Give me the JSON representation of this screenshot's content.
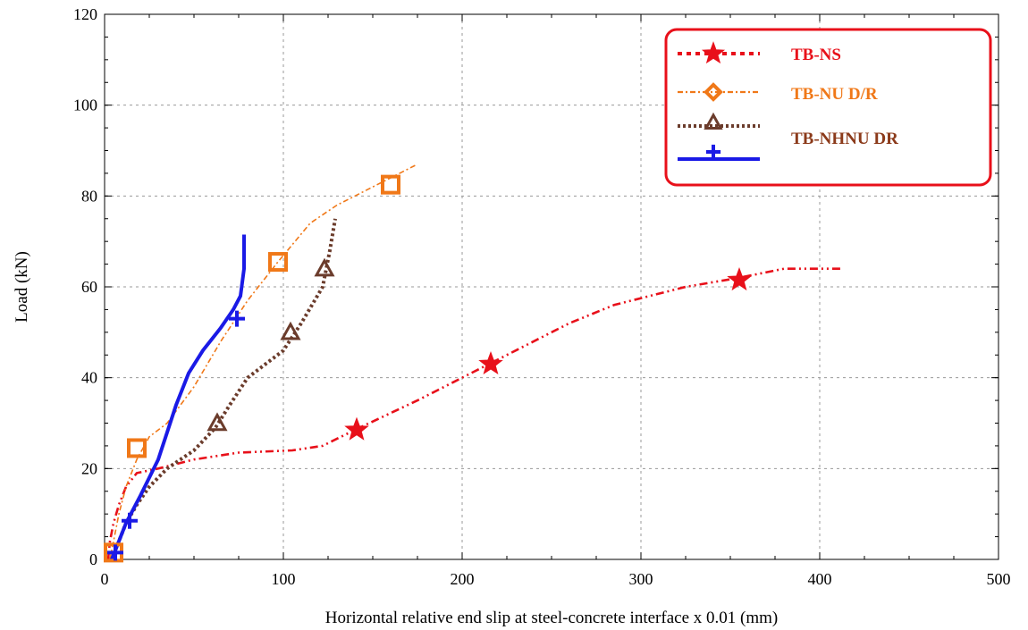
{
  "chart_data": {
    "type": "line",
    "title": "",
    "xlabel": "Horizontal relative end slip at steel-concrete interface x 0.01 (mm)",
    "ylabel": "Load (kN)",
    "xlim": [
      0,
      500
    ],
    "ylim": [
      0,
      120
    ],
    "x_ticks": [
      "0",
      "100",
      "200",
      "300",
      "400",
      "500"
    ],
    "y_ticks": [
      "0",
      "20",
      "40",
      "60",
      "80",
      "100",
      "120"
    ],
    "grid": true,
    "legend_position": "top-right",
    "series": [
      {
        "name": "TB-NS",
        "color": "#e8101a",
        "marker": "star",
        "line_style": "dash-dot-dot",
        "x": [
          2,
          3,
          5,
          8,
          12,
          18,
          30,
          50,
          75,
          105,
          122,
          140,
          175,
          215,
          260,
          285,
          325,
          355,
          380,
          412
        ],
        "y": [
          0,
          4,
          8,
          12,
          16,
          19,
          20,
          22,
          23.5,
          24,
          25,
          28.5,
          35,
          43,
          52,
          56,
          60,
          62,
          64,
          64
        ],
        "marker_x": [
          141,
          216,
          355
        ],
        "marker_y": [
          28.5,
          43,
          61.5
        ]
      },
      {
        "name": "TB-NU D/R",
        "color": "#f07818",
        "marker": "square",
        "line_style": "dash-dot",
        "x": [
          3,
          5,
          8,
          12,
          18,
          25,
          35,
          50,
          65,
          80,
          97,
          115,
          130,
          160,
          175
        ],
        "y": [
          0,
          4,
          10,
          16,
          22,
          27,
          30,
          38,
          48,
          57,
          65.5,
          74,
          78,
          84,
          87
        ],
        "marker_x": [
          5,
          18,
          97,
          160
        ],
        "marker_y": [
          1.5,
          24.5,
          65.5,
          82.5
        ]
      },
      {
        "name": "TB-NHNU DR",
        "color": "#6b3c2c",
        "marker": "triangle",
        "line_style": "dotted",
        "x": [
          4,
          8,
          12,
          18,
          25,
          35,
          50,
          62,
          70,
          80,
          100,
          110,
          122,
          126,
          129
        ],
        "y": [
          0,
          4,
          8,
          12,
          16,
          20,
          24,
          29,
          34,
          40,
          46,
          52,
          60,
          68,
          75
        ],
        "marker_x": [
          63,
          104,
          123
        ],
        "marker_y": [
          30,
          50,
          64
        ]
      },
      {
        "name": "",
        "color": "#1a1ae6",
        "marker": "plus",
        "line_style": "solid",
        "x": [
          4,
          8,
          12,
          16,
          20,
          25,
          30,
          35,
          40,
          47,
          55,
          65,
          72,
          76,
          78,
          78
        ],
        "y": [
          0,
          4,
          8,
          11,
          14,
          18,
          22,
          28,
          34,
          41,
          46,
          51,
          55,
          58,
          64,
          71.5
        ],
        "marker_x": [
          6,
          14,
          74
        ],
        "marker_y": [
          1.5,
          8.5,
          53
        ]
      }
    ]
  }
}
